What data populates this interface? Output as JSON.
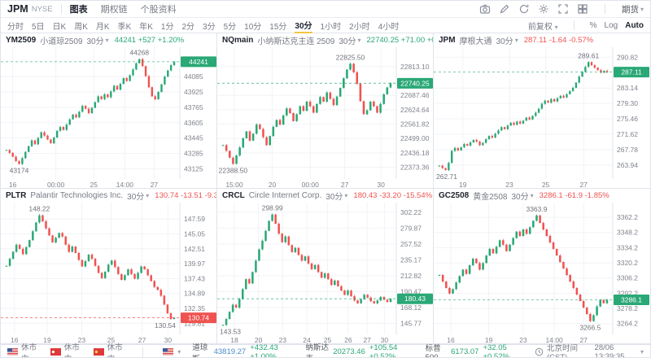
{
  "header": {
    "symbol": "JPM",
    "exchange": "NYSE",
    "tabs": [
      {
        "label": "图表",
        "active": true
      },
      {
        "label": "期权链",
        "active": false
      },
      {
        "label": "个股资料",
        "active": false
      }
    ],
    "icons": [
      "camera-icon",
      "edit-icon",
      "refresh-icon",
      "settings-icon",
      "fullscreen-icon",
      "layout-grid-icon"
    ],
    "layout_menu": {
      "label": "期货"
    }
  },
  "timeframe_bar": {
    "items": [
      "分时",
      "5日",
      "日K",
      "周K",
      "月K",
      "季K",
      "年K",
      "1分",
      "2分",
      "3分",
      "5分",
      "10分",
      "15分",
      "30分",
      "1小时",
      "2小时",
      "4小时"
    ],
    "active": "30分",
    "right": {
      "adjust": "前复权",
      "percent": "%",
      "log": "Log",
      "auto": "Auto"
    }
  },
  "colors": {
    "up": "#2aa876",
    "down": "#ef5350",
    "grid": "#f2f3f7",
    "axis_text": "#80848e",
    "underline": "#f5c542",
    "dow_value": "#4e8bc4"
  },
  "chart_data": [
    {
      "type": "candlestick",
      "symbol": "YM2509",
      "name": "小道琼2509",
      "interval": "30分",
      "last": "44241",
      "change": "+527",
      "change_pct": "+1.20%",
      "direction": "up",
      "badge": "up",
      "high_label": "44268",
      "low_label": "43174",
      "ylim": [
        43060,
        44350
      ],
      "yticks": [
        "43125",
        "43285",
        "43445",
        "43605",
        "43765",
        "43925",
        "44085"
      ],
      "xlabels": [
        {
          "pos": 0.05,
          "label": "16"
        },
        {
          "pos": 0.3,
          "label": "00:00"
        },
        {
          "pos": 0.52,
          "label": "25"
        },
        {
          "pos": 0.7,
          "label": "14:00"
        },
        {
          "pos": 0.87,
          "label": "27"
        }
      ],
      "closes": [
        43320,
        43290,
        43250,
        43205,
        43174,
        43235,
        43300,
        43360,
        43420,
        43380,
        43445,
        43505,
        43470,
        43430,
        43390,
        43450,
        43520,
        43560,
        43530,
        43585,
        43640,
        43690,
        43660,
        43720,
        43780,
        43750,
        43705,
        43760,
        43820,
        43880,
        43850,
        43900,
        43870,
        43930,
        43990,
        43950,
        44010,
        44070,
        44040,
        44100,
        44160,
        44225,
        44268,
        44195,
        44090,
        43975,
        43880,
        43850,
        43925,
        44005,
        44085,
        44150,
        44205,
        44241
      ]
    },
    {
      "type": "candlestick",
      "symbol": "NQmain",
      "name": "小纳斯达克主连 2509",
      "interval": "30分",
      "last": "22740.25",
      "change": "+71.00",
      "change_pct": "+0.31%",
      "direction": "up",
      "badge": "up",
      "high_label": "22825.50",
      "low_label": "22388.50",
      "ylim": [
        22340,
        22880
      ],
      "yticks": [
        "22373.36",
        "22436.18",
        "22499.00",
        "22561.82",
        "22624.64",
        "22687.46",
        "22813.10"
      ],
      "xlabels": [
        {
          "pos": 0.08,
          "label": "15:00"
        },
        {
          "pos": 0.3,
          "label": "20"
        },
        {
          "pos": 0.52,
          "label": "00:00"
        },
        {
          "pos": 0.72,
          "label": "27"
        },
        {
          "pos": 0.93,
          "label": "30"
        }
      ],
      "closes": [
        22470,
        22445,
        22415,
        22388.5,
        22425,
        22460,
        22500,
        22530,
        22490,
        22520,
        22560,
        22540,
        22505,
        22470,
        22510,
        22550,
        22580,
        22560,
        22600,
        22630,
        22610,
        22575,
        22605,
        22640,
        22620,
        22660,
        22640,
        22612,
        22650,
        22680,
        22660,
        22700,
        22672,
        22645,
        22682,
        22720,
        22762,
        22800,
        22825.5,
        22788,
        22738,
        22662,
        22605,
        22622,
        22660,
        22640,
        22612,
        22650,
        22692,
        22722,
        22740.25
      ]
    },
    {
      "type": "candlestick",
      "symbol": "JPM",
      "name": "摩根大通",
      "interval": "30分",
      "last": "287.11",
      "change": "-1.64",
      "change_pct": "-0.57%",
      "direction": "down",
      "badge": "up",
      "high_label": "289.61",
      "low_label": "262.71",
      "ylim": [
        261.5,
        292.3
      ],
      "yticks": [
        "263.94",
        "267.78",
        "271.62",
        "275.46",
        "279.30",
        "283.14",
        "290.82"
      ],
      "xlabels": [
        {
          "pos": 0.15,
          "label": "19"
        },
        {
          "pos": 0.42,
          "label": "23"
        },
        {
          "pos": 0.63,
          "label": "25"
        },
        {
          "pos": 0.85,
          "label": "27"
        }
      ],
      "closes": [
        263.8,
        263.2,
        262.71,
        264.5,
        267.5,
        268.2,
        267.6,
        268.4,
        269.2,
        268.8,
        269.6,
        270.2,
        269.8,
        268.9,
        269.5,
        270.4,
        271.2,
        270.8,
        271.8,
        272.6,
        273.4,
        272.9,
        273.8,
        274.5,
        274.0,
        274.8,
        274.3,
        275.0,
        275.8,
        275.3,
        276.2,
        277.0,
        278.0,
        279.2,
        280.0,
        279.5,
        280.4,
        279.8,
        280.6,
        281.2,
        280.8,
        281.6,
        282.4,
        283.2,
        284.5,
        286.0,
        287.2,
        288.4,
        289.61,
        288.8,
        288.2,
        287.6,
        287.0,
        287.4,
        287.11
      ]
    },
    {
      "type": "candlestick",
      "symbol": "PLTR",
      "name": "Palantir Technologies Inc.",
      "interval": "30分",
      "last": "130.74",
      "change": "-13.51",
      "change_pct": "-9.37%",
      "direction": "down",
      "badge": "down",
      "high_label": "148.22",
      "low_label": "130.54",
      "ylim": [
        128.6,
        149.7
      ],
      "yticks": [
        "129.81",
        "132.35",
        "134.89",
        "137.43",
        "139.97",
        "142.51",
        "145.05",
        "147.59"
      ],
      "xlabels": [
        {
          "pos": 0.06,
          "label": "16"
        },
        {
          "pos": 0.25,
          "label": "19"
        },
        {
          "pos": 0.45,
          "label": "23"
        },
        {
          "pos": 0.62,
          "label": "25"
        },
        {
          "pos": 0.8,
          "label": "27"
        },
        {
          "pos": 0.95,
          "label": "30"
        }
      ],
      "closes": [
        139.6,
        140.8,
        142.0,
        143.2,
        142.5,
        141.6,
        142.8,
        144.0,
        145.5,
        147.0,
        148.22,
        147.2,
        146.0,
        144.8,
        143.6,
        144.4,
        145.2,
        144.6,
        143.2,
        142.0,
        142.9,
        141.8,
        140.6,
        139.5,
        140.4,
        141.5,
        140.8,
        139.6,
        138.4,
        137.5,
        138.6,
        139.8,
        140.5,
        139.4,
        138.2,
        137.2,
        138.0,
        139.0,
        138.2,
        137.4,
        138.4,
        139.5,
        139.0,
        138.0,
        137.0,
        136.0,
        135.5,
        134.5,
        133.0,
        131.5,
        130.54,
        130.74
      ]
    },
    {
      "type": "candlestick",
      "symbol": "CRCL",
      "name": "Circle Internet Corp.",
      "interval": "30分",
      "last": "180.43",
      "change": "-33.20",
      "change_pct": "-15.54%",
      "direction": "down",
      "badge": "up",
      "high_label": "298.99",
      "low_label": "143.53",
      "ylim": [
        136,
        310
      ],
      "yticks": [
        "145.77",
        "168.12",
        "190.47",
        "212.82",
        "235.17",
        "257.52",
        "279.87",
        "302.22"
      ],
      "xlabels": [
        {
          "pos": 0.08,
          "label": "18"
        },
        {
          "pos": 0.22,
          "label": "20"
        },
        {
          "pos": 0.36,
          "label": "23"
        },
        {
          "pos": 0.5,
          "label": "24"
        },
        {
          "pos": 0.62,
          "label": "25"
        },
        {
          "pos": 0.74,
          "label": "26"
        },
        {
          "pos": 0.85,
          "label": "27"
        },
        {
          "pos": 0.95,
          "label": "30"
        }
      ],
      "closes": [
        143.53,
        152,
        162,
        172,
        168,
        180,
        194,
        208,
        202,
        218,
        234,
        250,
        262,
        276,
        290,
        298.99,
        286,
        272,
        260,
        268,
        256,
        246,
        252,
        242,
        234,
        240,
        230,
        222,
        228,
        218,
        210,
        216,
        208,
        200,
        206,
        198,
        192,
        186,
        192,
        184,
        178,
        174,
        180,
        186,
        182,
        177,
        174,
        178,
        183,
        179,
        176,
        180.43
      ]
    },
    {
      "type": "candlestick",
      "symbol": "GC2508",
      "name": "黄金2508",
      "interval": "30分",
      "last": "3286.1",
      "change": "-61.9",
      "change_pct": "-1.85%",
      "direction": "down",
      "badge": "up",
      "high_label": "3363.9",
      "low_label": "3266.5",
      "ylim": [
        3258,
        3372
      ],
      "yticks": [
        "3264.2",
        "3278.2",
        "3292.2",
        "3306.2",
        "3320.2",
        "3334.2",
        "3348.2",
        "3362.2"
      ],
      "xlabels": [
        {
          "pos": 0.08,
          "label": "16"
        },
        {
          "pos": 0.3,
          "label": "19"
        },
        {
          "pos": 0.5,
          "label": "23"
        },
        {
          "pos": 0.68,
          "label": "14:00"
        },
        {
          "pos": 0.85,
          "label": "27"
        }
      ],
      "closes": [
        3309,
        3303,
        3297,
        3292,
        3296,
        3302,
        3308,
        3314,
        3310,
        3318,
        3324,
        3320,
        3314,
        3320,
        3327,
        3333,
        3329,
        3335,
        3341,
        3337,
        3331,
        3337,
        3343,
        3349,
        3345,
        3351,
        3347,
        3353,
        3359,
        3363.9,
        3357,
        3351,
        3345,
        3339,
        3333,
        3327,
        3321,
        3315,
        3309,
        3303,
        3297,
        3291,
        3285,
        3279,
        3273,
        3266.5,
        3272,
        3280,
        3286,
        3283,
        3286.1
      ]
    }
  ],
  "status_bar": {
    "markets": [
      {
        "flag": "us",
        "label": "休市中"
      },
      {
        "flag": "hk",
        "label": "休市中"
      },
      {
        "flag": "cn",
        "label": "休市中"
      }
    ],
    "region_selector": {
      "flag": "us"
    },
    "indices": [
      {
        "name": "道琼斯",
        "value": "43819.27",
        "change": "+432.43",
        "pct": "+1.00%",
        "value_color": "#4e8bc4"
      },
      {
        "name": "纳斯达克",
        "value": "20273.46",
        "change": "+105.54",
        "pct": "+0.52%",
        "value_color": "#2aa876"
      },
      {
        "name": "标普500",
        "value": "6173.07",
        "change": "+32.05",
        "pct": "+0.52%",
        "value_color": "#2aa876"
      }
    ],
    "clock": {
      "label": "北京时间 (CST)",
      "datetime": "28/06 13:39:35"
    }
  }
}
